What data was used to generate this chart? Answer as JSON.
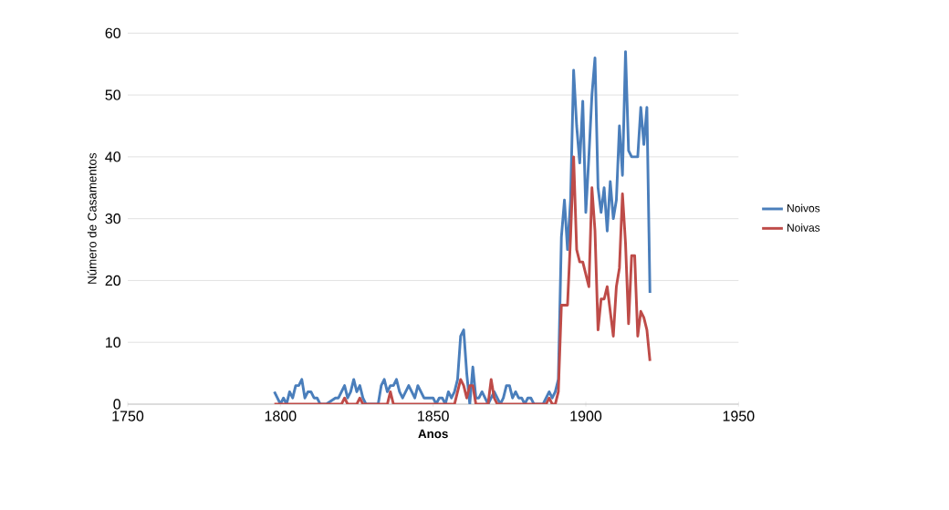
{
  "chart_data": {
    "type": "line",
    "xlabel": "Anos",
    "ylabel": "Número de Casamentos",
    "xlim": [
      1750,
      1950
    ],
    "xticks": [
      1750,
      1800,
      1850,
      1900,
      1950
    ],
    "ylim": [
      0,
      60
    ],
    "yticks": [
      0,
      10,
      20,
      30,
      40,
      50,
      60
    ],
    "grid": "y",
    "legend": "right",
    "marker": "none",
    "line_style": "solid",
    "series": [
      {
        "name": "Noivos",
        "color": "#4a7ebb",
        "x": [
          1798,
          1799,
          1800,
          1801,
          1802,
          1803,
          1804,
          1805,
          1806,
          1807,
          1808,
          1809,
          1810,
          1811,
          1812,
          1813,
          1815,
          1818,
          1819,
          1820,
          1821,
          1822,
          1823,
          1824,
          1825,
          1826,
          1827,
          1828,
          1832,
          1833,
          1834,
          1835,
          1836,
          1837,
          1838,
          1839,
          1840,
          1841,
          1842,
          1843,
          1844,
          1845,
          1846,
          1847,
          1848,
          1849,
          1850,
          1851,
          1852,
          1853,
          1854,
          1855,
          1856,
          1857,
          1858,
          1859,
          1860,
          1861,
          1862,
          1863,
          1864,
          1865,
          1866,
          1867,
          1868,
          1869,
          1870,
          1871,
          1872,
          1873,
          1874,
          1875,
          1876,
          1877,
          1878,
          1879,
          1880,
          1881,
          1882,
          1883,
          1884,
          1886,
          1887,
          1888,
          1889,
          1890,
          1891,
          1892,
          1893,
          1894,
          1895,
          1896,
          1897,
          1898,
          1899,
          1900,
          1901,
          1902,
          1903,
          1904,
          1905,
          1906,
          1907,
          1908,
          1909,
          1910,
          1911,
          1912,
          1913,
          1914,
          1915,
          1916,
          1917,
          1918,
          1919,
          1920,
          1921
        ],
        "values": [
          2,
          1,
          0,
          1,
          0,
          2,
          1,
          3,
          3,
          4,
          1,
          2,
          2,
          1,
          1,
          0,
          0,
          1,
          1,
          2,
          3,
          1,
          2,
          4,
          2,
          3,
          1,
          0,
          0,
          3,
          4,
          2,
          3,
          3,
          4,
          2,
          1,
          2,
          3,
          2,
          1,
          3,
          2,
          1,
          1,
          1,
          1,
          0,
          1,
          1,
          0,
          2,
          1,
          2,
          4,
          11,
          12,
          5,
          0,
          6,
          1,
          1,
          2,
          1,
          0,
          1,
          2,
          1,
          0,
          1,
          3,
          3,
          1,
          2,
          1,
          1,
          0,
          1,
          1,
          0,
          0,
          0,
          1,
          2,
          1,
          2,
          4,
          27,
          33,
          25,
          33,
          54,
          45,
          39,
          49,
          31,
          40,
          50,
          56,
          35,
          31,
          35,
          28,
          36,
          30,
          33,
          45,
          37,
          57,
          41,
          40,
          40,
          40,
          48,
          42,
          48,
          18
        ]
      },
      {
        "name": "Noivas",
        "color": "#be4b48",
        "x": [
          1798,
          1820,
          1821,
          1822,
          1825,
          1826,
          1827,
          1835,
          1836,
          1837,
          1857,
          1858,
          1859,
          1860,
          1861,
          1862,
          1863,
          1864,
          1868,
          1869,
          1870,
          1871,
          1887,
          1888,
          1889,
          1890,
          1891,
          1892,
          1893,
          1894,
          1895,
          1896,
          1897,
          1898,
          1899,
          1900,
          1901,
          1902,
          1903,
          1904,
          1905,
          1906,
          1907,
          1908,
          1909,
          1910,
          1911,
          1912,
          1913,
          1914,
          1915,
          1916,
          1917,
          1918,
          1919,
          1920,
          1921
        ],
        "values": [
          0,
          0,
          1,
          0,
          0,
          1,
          0,
          0,
          2,
          0,
          0,
          2,
          4,
          3,
          1,
          3,
          3,
          0,
          0,
          4,
          1,
          0,
          0,
          1,
          0,
          0,
          2,
          16,
          16,
          16,
          27,
          40,
          25,
          23,
          23,
          21,
          19,
          35,
          28,
          12,
          17,
          17,
          19,
          15,
          11,
          19,
          22,
          34,
          26,
          13,
          24,
          24,
          11,
          15,
          14,
          12,
          7
        ]
      }
    ]
  }
}
